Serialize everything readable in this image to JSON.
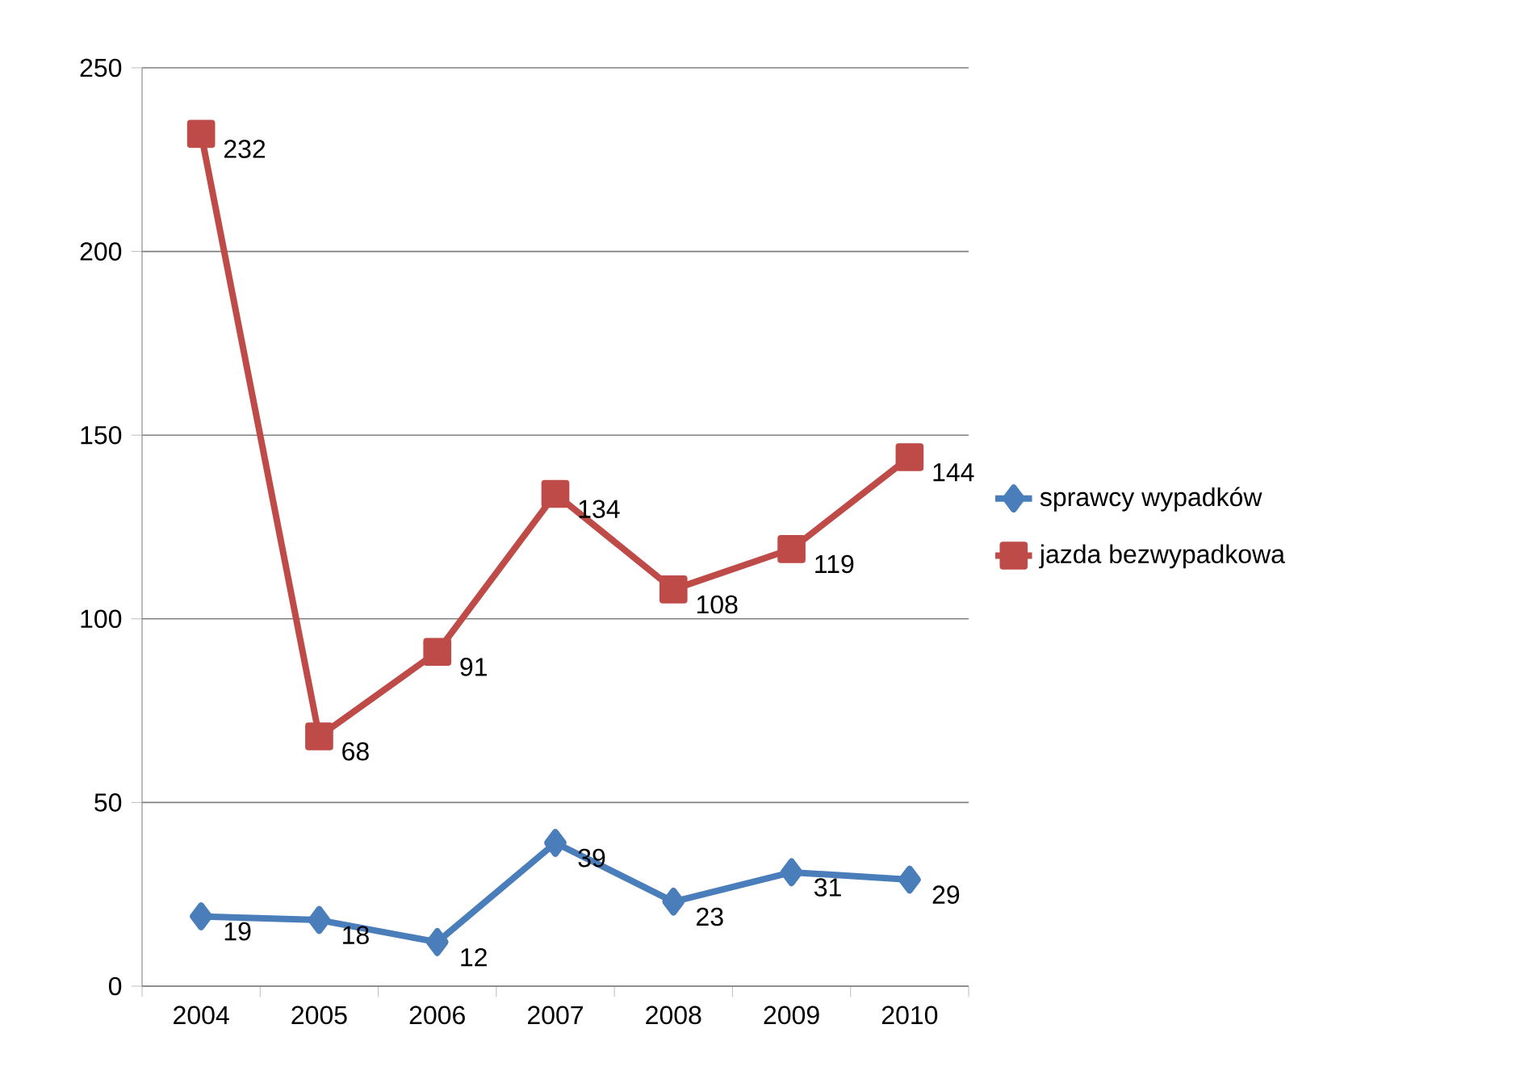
{
  "chart_data": {
    "type": "line",
    "categories": [
      "2004",
      "2005",
      "2006",
      "2007",
      "2008",
      "2009",
      "2010"
    ],
    "series": [
      {
        "name": "sprawcy wypadków",
        "color": "#4a7ebb",
        "marker": "diamond",
        "values": [
          19,
          18,
          12,
          39,
          23,
          31,
          29
        ]
      },
      {
        "name": "jazda bezwypadkowa",
        "color": "#be4b48",
        "marker": "square",
        "values": [
          232,
          68,
          91,
          134,
          108,
          119,
          144
        ]
      }
    ],
    "ylim": [
      0,
      250
    ],
    "yticks": [
      0,
      50,
      100,
      150,
      200,
      250
    ],
    "grid": "y",
    "legend": "right",
    "data_labels": true,
    "line_style": "solid"
  }
}
